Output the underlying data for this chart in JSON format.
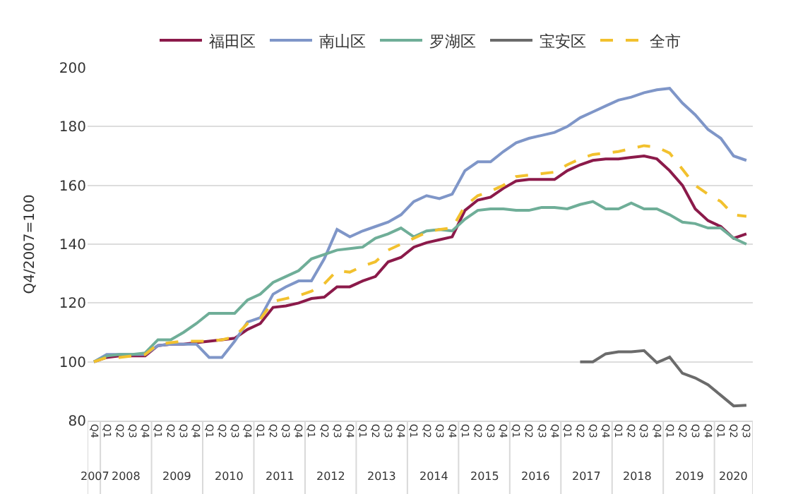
{
  "chart_data": {
    "type": "line",
    "ylabel": "Q4/2007=100",
    "categories": [
      "Q4",
      "Q1",
      "Q2",
      "Q3",
      "Q4",
      "Q1",
      "Q2",
      "Q3",
      "Q4",
      "Q1",
      "Q2",
      "Q3",
      "Q4",
      "Q1",
      "Q2",
      "Q3",
      "Q4",
      "Q1",
      "Q2",
      "Q3",
      "Q4",
      "Q1",
      "Q2",
      "Q3",
      "Q4",
      "Q1",
      "Q2",
      "Q3",
      "Q4",
      "Q1",
      "Q2",
      "Q3",
      "Q4",
      "Q1",
      "Q2",
      "Q3",
      "Q4",
      "Q1",
      "Q2",
      "Q3",
      "Q4",
      "Q1",
      "Q2",
      "Q3",
      "Q4",
      "Q1",
      "Q2",
      "Q3",
      "Q4",
      "Q1",
      "Q2",
      "Q3"
    ],
    "annotations": [
      "2007",
      "2008",
      "2009",
      "2010",
      "2011",
      "2012",
      "2013",
      "2014",
      "2015",
      "2016",
      "2017",
      "2018",
      "2019",
      "2020"
    ],
    "series": [
      {
        "name": "福田区",
        "color": "#8b1a4a",
        "values": [
          100,
          101.5,
          102,
          102,
          102,
          105.5,
          106,
          106,
          106.5,
          107,
          107.5,
          108,
          111,
          113,
          118.5,
          119,
          120,
          121.5,
          122,
          125.5,
          125.5,
          127.5,
          129,
          134,
          135.5,
          139,
          140.5,
          141.5,
          142.5,
          151.5,
          155,
          156,
          159,
          161.5,
          162,
          162,
          162,
          165,
          167,
          168.5,
          169,
          169,
          169.5,
          170,
          169,
          165,
          160,
          152,
          148,
          146,
          142,
          143.5
        ]
      },
      {
        "name": "南山区",
        "color": "#7f96c8",
        "values": [
          100,
          102.5,
          102.5,
          102.5,
          102.5,
          105.5,
          106,
          106,
          106,
          101.5,
          101.5,
          107,
          113.5,
          115,
          123,
          125.5,
          127.5,
          127.5,
          135,
          145,
          142.5,
          144.5,
          146,
          147.5,
          150,
          154.5,
          156.5,
          155.5,
          157,
          165,
          168,
          168,
          171.5,
          174.5,
          176,
          177,
          178,
          180,
          183,
          185,
          187,
          189,
          190,
          191.5,
          192.5,
          193,
          188,
          184,
          179,
          176,
          170,
          168.5
        ]
      },
      {
        "name": "罗湖区",
        "color": "#6fae98",
        "values": [
          100,
          102,
          102.5,
          102.5,
          103,
          107.5,
          107.5,
          110,
          113,
          116.5,
          116.5,
          116.5,
          121,
          123,
          127,
          129,
          131,
          135,
          136.5,
          138,
          138.5,
          139,
          142,
          143.5,
          145.5,
          142.5,
          144.5,
          145,
          144.5,
          148.5,
          151.5,
          152,
          152,
          151.5,
          151.5,
          152.5,
          152.5,
          152,
          153.5,
          154.5,
          152,
          152,
          154,
          152,
          152,
          150,
          147.5,
          147,
          145.5,
          145.5,
          142,
          140
        ]
      },
      {
        "name": "宝安区",
        "color": "#6b6b6b",
        "values": [
          null,
          null,
          null,
          null,
          null,
          null,
          null,
          null,
          null,
          null,
          null,
          null,
          null,
          null,
          null,
          null,
          null,
          null,
          null,
          null,
          null,
          null,
          null,
          null,
          null,
          null,
          null,
          null,
          null,
          null,
          null,
          null,
          null,
          null,
          null,
          null,
          null,
          null,
          100,
          100,
          102.7,
          103.4,
          103.4,
          103.8,
          99.7,
          101.6,
          96.1,
          94.5,
          92.2,
          88.6,
          85,
          85.2
        ]
      },
      {
        "name": "全市",
        "color": "#f2c12e",
        "line_style": "dashed",
        "values": [
          100,
          101.5,
          101.5,
          102,
          102.5,
          106,
          106.5,
          107,
          107,
          107,
          107.5,
          108.5,
          113,
          114.5,
          120.5,
          121.5,
          122.5,
          124,
          126.5,
          131,
          130.5,
          132.5,
          134,
          138,
          140,
          142,
          144,
          145,
          145.5,
          153,
          156.5,
          158,
          160,
          163,
          163.5,
          164,
          164.5,
          167,
          169,
          170.5,
          171,
          171.5,
          172.5,
          173.5,
          173,
          171,
          165.5,
          160,
          157,
          154.5,
          150,
          149.5
        ]
      }
    ],
    "ylim": [
      80,
      200
    ],
    "yticks": [
      80,
      100,
      120,
      140,
      160,
      180,
      200
    ],
    "grid": "y",
    "legend": "top"
  }
}
